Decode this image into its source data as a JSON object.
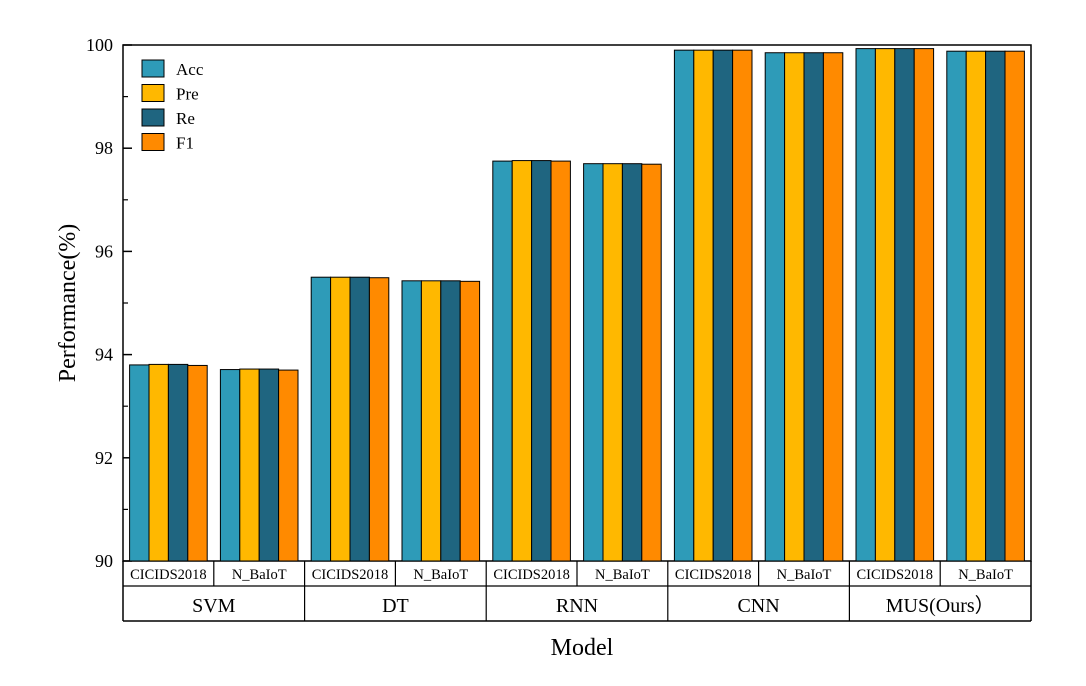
{
  "chart_data": {
    "type": "bar",
    "title": "",
    "xlabel": "Model",
    "ylabel": "Performance(%)",
    "ylim": [
      90,
      100
    ],
    "yticks": [
      90,
      92,
      94,
      96,
      98,
      100
    ],
    "grid": false,
    "legend_position": "top-left",
    "groups": [
      "SVM",
      "DT",
      "RNN",
      "CNN",
      "MUS(Ours）"
    ],
    "categories": [
      "CICIDS2018",
      "N_BaIoT",
      "CICIDS2018",
      "N_BaIoT",
      "CICIDS2018",
      "N_BaIoT",
      "CICIDS2018",
      "N_BaIoT",
      "CICIDS2018",
      "N_BaIoT"
    ],
    "series": [
      {
        "name": "Acc",
        "color": "#2E9BB8",
        "values": [
          93.8,
          93.71,
          95.5,
          95.43,
          97.75,
          97.7,
          99.9,
          99.85,
          99.93,
          99.88
        ]
      },
      {
        "name": "Pre",
        "color": "#FFB800",
        "values": [
          93.81,
          93.72,
          95.5,
          95.43,
          97.76,
          97.7,
          99.9,
          99.85,
          99.93,
          99.88
        ]
      },
      {
        "name": "Re",
        "color": "#1F6580",
        "values": [
          93.81,
          93.72,
          95.5,
          95.43,
          97.76,
          97.7,
          99.9,
          99.85,
          99.93,
          99.88
        ]
      },
      {
        "name": "F1",
        "color": "#FF8A00",
        "values": [
          93.79,
          93.7,
          95.49,
          95.42,
          97.75,
          97.69,
          99.9,
          99.85,
          99.93,
          99.88
        ]
      }
    ]
  }
}
